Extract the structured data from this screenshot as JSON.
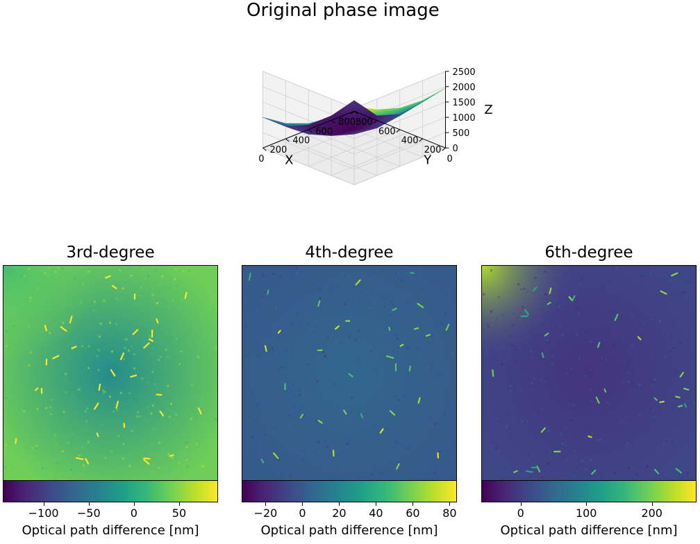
{
  "figure": {
    "title": "Original phase image"
  },
  "chart_data": [
    {
      "type": "surface3d",
      "title": "Original phase image",
      "xlabel": "X",
      "ylabel": "Y",
      "zlabel": "Z",
      "x_ticks": [
        "800",
        "600",
        "400",
        "200",
        "0"
      ],
      "y_ticks": [
        "0",
        "200",
        "400",
        "600",
        "800"
      ],
      "z_ticks": [
        "0",
        "500",
        "1000",
        "1500",
        "2000",
        "2500"
      ],
      "xlim": [
        0,
        800
      ],
      "ylim": [
        0,
        800
      ],
      "zlim": [
        0,
        2500
      ],
      "colormap": "viridis",
      "x": [
        0,
        200,
        400,
        600,
        800
      ],
      "y": [
        0,
        200,
        400,
        600,
        800
      ],
      "z_grid": [
        [
          2550,
          2150,
          1900,
          1850,
          1950
        ],
        [
          1900,
          1400,
          1100,
          1050,
          1200
        ],
        [
          1400,
          800,
          450,
          350,
          500
        ],
        [
          1100,
          450,
          100,
          0,
          150
        ],
        [
          1000,
          400,
          150,
          150,
          350
        ]
      ]
    },
    {
      "type": "heatmap",
      "title": "3rd-degree",
      "colormap": "viridis",
      "colorbar_label": "Optical path difference [nm]",
      "colorbar_range": [
        -145,
        93
      ],
      "colorbar_ticks": [
        "−100",
        "−50",
        "0",
        "50"
      ],
      "colorbar_tick_values": [
        -100,
        -50,
        0,
        50
      ],
      "background_value": 40,
      "center_value": -30,
      "top_left_value": 20
    },
    {
      "type": "heatmap",
      "title": "4th-degree",
      "colormap": "viridis",
      "colorbar_label": "Optical path difference [nm]",
      "colorbar_range": [
        -33,
        84
      ],
      "colorbar_ticks": [
        "−20",
        "0",
        "20",
        "40",
        "60",
        "80"
      ],
      "colorbar_tick_values": [
        -20,
        0,
        20,
        40,
        60,
        80
      ],
      "background_value": 0,
      "center_value": 5,
      "top_left_value": 0
    },
    {
      "type": "heatmap",
      "title": "6th-degree",
      "colormap": "viridis",
      "colorbar_label": "Optical path difference [nm]",
      "colorbar_range": [
        -60,
        268
      ],
      "colorbar_ticks": [
        "0",
        "100",
        "200"
      ],
      "colorbar_tick_values": [
        0,
        100,
        200
      ],
      "background_value": 10,
      "center_value": -10,
      "top_left_value": 230
    }
  ]
}
